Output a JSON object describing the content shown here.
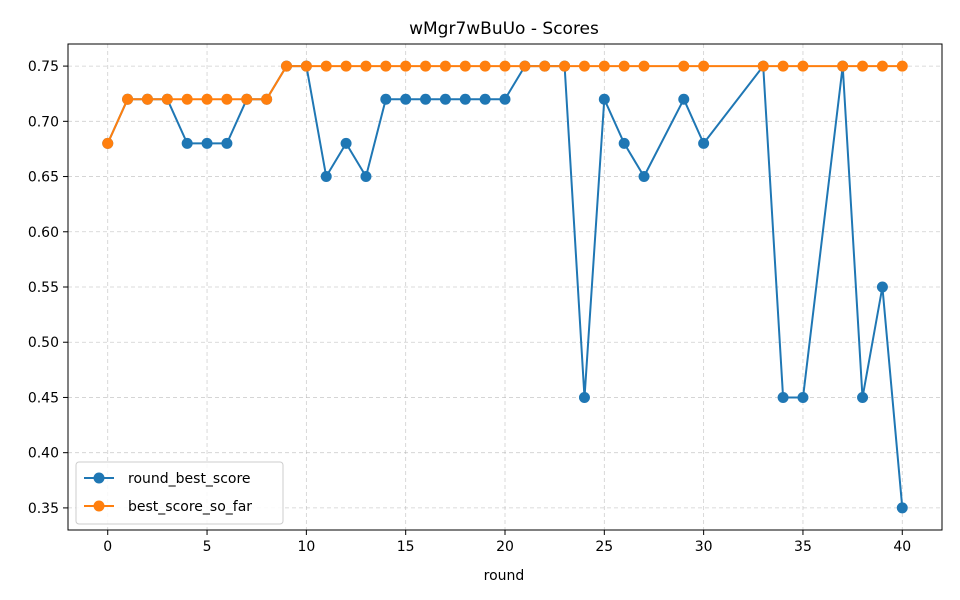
{
  "chart_data": {
    "type": "line",
    "title": "wMgr7wBuUo - Scores",
    "xlabel": "round",
    "ylabel": "",
    "xlim": [
      -2,
      42
    ],
    "ylim": [
      0.33,
      0.77
    ],
    "xticks": [
      0,
      5,
      10,
      15,
      20,
      25,
      30,
      35,
      40
    ],
    "yticks": [
      0.35,
      0.4,
      0.45,
      0.5,
      0.55,
      0.6,
      0.65,
      0.7,
      0.75
    ],
    "grid": true,
    "legend_position": "lower-left",
    "series": [
      {
        "name": "round_best_score",
        "color": "#1f77b4",
        "x": [
          0,
          1,
          2,
          3,
          4,
          5,
          6,
          7,
          8,
          9,
          10,
          11,
          12,
          13,
          14,
          15,
          16,
          17,
          18,
          19,
          20,
          21,
          22,
          23,
          24,
          25,
          26,
          27,
          29,
          30,
          33,
          34,
          35,
          37,
          38,
          39,
          40
        ],
        "y": [
          0.68,
          0.72,
          0.72,
          0.72,
          0.68,
          0.68,
          0.68,
          0.72,
          0.72,
          0.75,
          0.75,
          0.65,
          0.68,
          0.65,
          0.72,
          0.72,
          0.72,
          0.72,
          0.72,
          0.72,
          0.72,
          0.75,
          0.75,
          0.75,
          0.45,
          0.72,
          0.68,
          0.65,
          0.72,
          0.68,
          0.75,
          0.45,
          0.45,
          0.75,
          0.45,
          0.55,
          0.35
        ]
      },
      {
        "name": "best_score_so_far",
        "color": "#ff7f0e",
        "x": [
          0,
          1,
          2,
          3,
          4,
          5,
          6,
          7,
          8,
          9,
          10,
          11,
          12,
          13,
          14,
          15,
          16,
          17,
          18,
          19,
          20,
          21,
          22,
          23,
          24,
          25,
          26,
          27,
          29,
          30,
          33,
          34,
          35,
          37,
          38,
          39,
          40
        ],
        "y": [
          0.68,
          0.72,
          0.72,
          0.72,
          0.72,
          0.72,
          0.72,
          0.72,
          0.72,
          0.75,
          0.75,
          0.75,
          0.75,
          0.75,
          0.75,
          0.75,
          0.75,
          0.75,
          0.75,
          0.75,
          0.75,
          0.75,
          0.75,
          0.75,
          0.75,
          0.75,
          0.75,
          0.75,
          0.75,
          0.75,
          0.75,
          0.75,
          0.75,
          0.75,
          0.75,
          0.75,
          0.75
        ]
      }
    ]
  }
}
